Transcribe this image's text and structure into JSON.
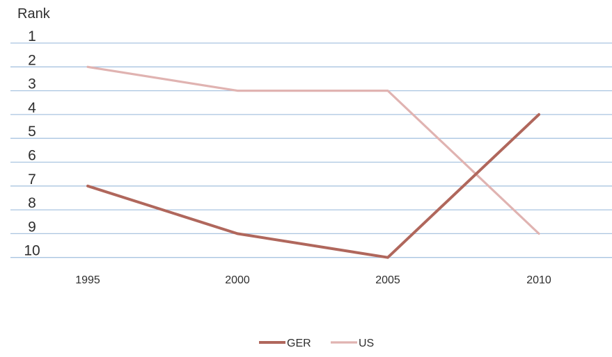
{
  "chart_data": {
    "type": "line",
    "title": "",
    "ylabel": "Rank",
    "xlabel": "",
    "x": [
      "1995",
      "2000",
      "2005",
      "2010"
    ],
    "yticks": [
      1,
      2,
      3,
      4,
      5,
      6,
      7,
      8,
      9,
      10
    ],
    "ylim": [
      1,
      10
    ],
    "y_inverted": true,
    "grid": true,
    "legend_position": "bottom",
    "series": [
      {
        "name": "GER",
        "values": [
          7,
          9,
          10,
          4
        ],
        "color": "#b0675c"
      },
      {
        "name": "US",
        "values": [
          2,
          3,
          3,
          9
        ],
        "color": "#e0b3b1"
      }
    ]
  }
}
